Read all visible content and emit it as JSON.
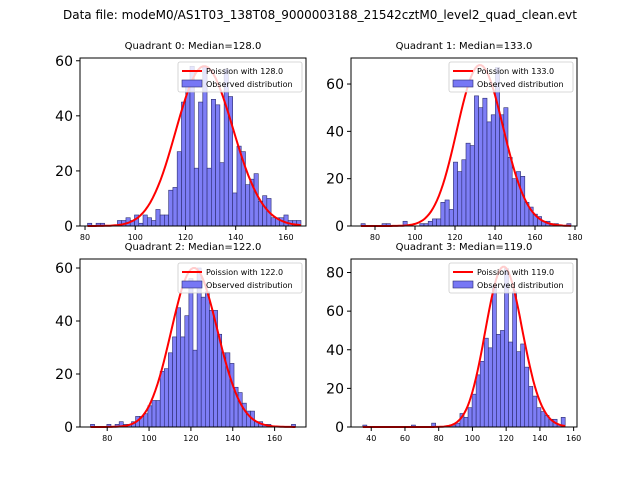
{
  "suptitle": "Data file: modeM0/AS1T03_138T08_9000003188_21542cztM0_level2_quad_clean.evt",
  "colors": {
    "bar_fill": "#7777f5",
    "bar_edge": "#2b2b6e",
    "poisson_line": "#ff0000"
  },
  "chart_data": [
    {
      "type": "bar",
      "title": "Quadrant 0: Median=128.0",
      "legend": [
        "Poission with 128.0",
        "Observed distribution"
      ],
      "legend_position": "top-right",
      "xlim": [
        78,
        168
      ],
      "ylim": [
        0,
        61
      ],
      "xticks": [
        80,
        100,
        120,
        140,
        160
      ],
      "yticks": [
        0,
        20,
        40,
        60
      ],
      "bin_start": 81,
      "bin_width": 1.7,
      "values": [
        1,
        0,
        1,
        1,
        0,
        0,
        0,
        2,
        2,
        3,
        2,
        4,
        1,
        4,
        3,
        2,
        6,
        4,
        4,
        13,
        14,
        27,
        45,
        51,
        58,
        21,
        45,
        58,
        21,
        46,
        44,
        23,
        57,
        47,
        12,
        29,
        27,
        15,
        17,
        19,
        9,
        11,
        10,
        3,
        3,
        3,
        4,
        2,
        2,
        2
      ],
      "poisson_mean": 128.0,
      "poisson_peak": 58
    },
    {
      "type": "bar",
      "title": "Quadrant 1: Median=133.0",
      "legend": [
        "Poission with 133.0",
        "Observed distribution"
      ],
      "legend_position": "top-right",
      "xlim": [
        68,
        181
      ],
      "ylim": [
        0,
        71
      ],
      "xticks": [
        80,
        100,
        120,
        140,
        160,
        180
      ],
      "yticks": [
        0,
        20,
        40,
        60
      ],
      "bin_start": 73,
      "bin_width": 2.1,
      "values": [
        1,
        0,
        0,
        0,
        0,
        1,
        1,
        0,
        0,
        0,
        2,
        0,
        0,
        0,
        1,
        1,
        2,
        3,
        3,
        10,
        11,
        7,
        27,
        23,
        28,
        35,
        34,
        55,
        50,
        54,
        44,
        47,
        67,
        47,
        50,
        29,
        20,
        23,
        21,
        10,
        8,
        5,
        4,
        2,
        2,
        1,
        1,
        0,
        0,
        1
      ],
      "poisson_mean": 133.0,
      "poisson_peak": 68
    },
    {
      "type": "bar",
      "title": "Quadrant 2: Median=122.0",
      "legend": [
        "Poission with 122.0",
        "Observed distribution"
      ],
      "legend_position": "top-right",
      "xlim": [
        67,
        175
      ],
      "ylim": [
        0,
        63.4
      ],
      "xticks": [
        80,
        100,
        120,
        140,
        160
      ],
      "yticks": [
        0,
        20,
        40,
        60
      ],
      "bin_start": 72,
      "bin_width": 1.96,
      "values": [
        1,
        0,
        0,
        0,
        1,
        0,
        1,
        2,
        1,
        1,
        2,
        4,
        4,
        5,
        8,
        10,
        10,
        21,
        22,
        28,
        34,
        45,
        34,
        42,
        56,
        29,
        60,
        49,
        51,
        44,
        44,
        35,
        28,
        28,
        24,
        15,
        13,
        9,
        6,
        6,
        2,
        2,
        1,
        1,
        0,
        0,
        0,
        0,
        0,
        1
      ],
      "poisson_mean": 122.0,
      "poisson_peak": 60
    },
    {
      "type": "bar",
      "title": "Quadrant 3: Median=119.0",
      "legend": [
        "Poission with 119.0",
        "Observed distribution"
      ],
      "legend_position": "top-right",
      "xlim": [
        28,
        162
      ],
      "ylim": [
        0,
        87
      ],
      "xticks": [
        40,
        60,
        80,
        100,
        120,
        140,
        160
      ],
      "yticks": [
        0,
        20,
        40,
        60,
        80
      ],
      "bin_start": 35,
      "bin_width": 2.4,
      "values": [
        1,
        0,
        0,
        0,
        0,
        0,
        0,
        0,
        0,
        0,
        0,
        0,
        1,
        0,
        0,
        0,
        0,
        2,
        0,
        0,
        0,
        0,
        1,
        2,
        7,
        5,
        10,
        17,
        27,
        34,
        46,
        41,
        73,
        48,
        50,
        82,
        44,
        70,
        39,
        43,
        31,
        21,
        16,
        10,
        8,
        6,
        4,
        4,
        1,
        5
      ],
      "poisson_mean": 119.0,
      "poisson_peak": 83
    }
  ]
}
